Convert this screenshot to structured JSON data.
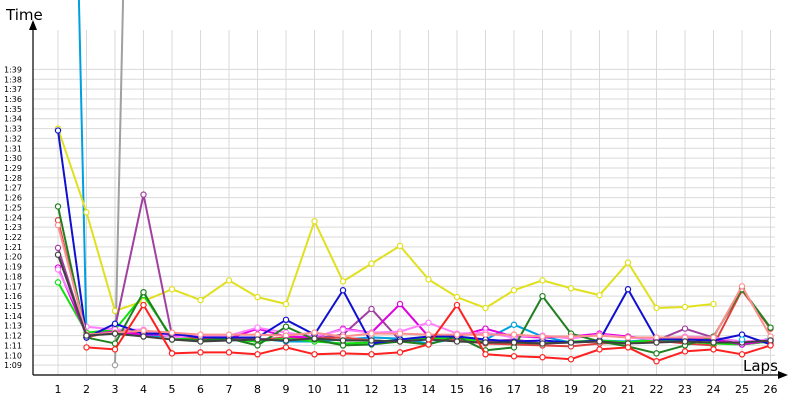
{
  "chart_data": {
    "type": "line",
    "title": "",
    "ylabel": "Time",
    "xlabel": "Laps",
    "x": [
      1,
      2,
      3,
      4,
      5,
      6,
      7,
      8,
      9,
      10,
      11,
      12,
      13,
      14,
      15,
      16,
      17,
      18,
      19,
      20,
      21,
      22,
      23,
      24,
      25,
      26
    ],
    "y_tick_labels": [
      "1:09",
      "1:10",
      "1:11",
      "1:12",
      "1:13",
      "1:14",
      "1:15",
      "1:16",
      "1:17",
      "1:18",
      "1:19",
      "1:20",
      "1:21",
      "1:22",
      "1:23",
      "1:24",
      "1:25",
      "1:26",
      "1:27",
      "1:28",
      "1:29",
      "1:30",
      "1:31",
      "1:32",
      "1:33",
      "1:34",
      "1:35",
      "1:36",
      "1:37",
      "1:38",
      "1:39"
    ],
    "ylim_seconds": [
      68,
      103
    ],
    "grid": true,
    "series": [
      {
        "color": "#00a0e0",
        "values": [
          200,
          72,
          72.5,
          72,
          71.9,
          71.8,
          71.5,
          71.7,
          71.4,
          71.4,
          71.6,
          71.8,
          71.7,
          71.2,
          71.7,
          71.6,
          73.1,
          71.9,
          71.3,
          71.5,
          71.4,
          71.6,
          71.6,
          71.7,
          71.1,
          71.7
        ]
      },
      {
        "color": "#a0a0a0",
        "values": [
          null,
          null,
          69,
          200,
          null,
          null,
          null,
          null,
          null,
          null,
          null,
          null,
          null,
          null,
          null,
          null,
          null,
          null,
          null,
          null,
          null,
          null,
          null,
          null,
          null,
          null
        ]
      },
      {
        "color": "#e0e020",
        "values": [
          93,
          84.5,
          74.5,
          75.5,
          76.7,
          75.6,
          77.6,
          75.9,
          75.2,
          83.6,
          77.5,
          79.3,
          81.1,
          77.7,
          75.9,
          74.8,
          76.6,
          77.6,
          76.8,
          76.1,
          79.4,
          74.8,
          74.9,
          75.2,
          null,
          null
        ]
      },
      {
        "color": "#a040a0",
        "values": [
          80.9,
          71.8,
          72.8,
          86.3,
          72,
          71.8,
          71.6,
          71.6,
          71.8,
          71.7,
          72.1,
          74.7,
          71.5,
          71.9,
          71.6,
          71.4,
          71.6,
          71.2,
          71.3,
          71.4,
          71.2,
          71.5,
          72.7,
          71.8,
          71.1,
          71.4
        ]
      },
      {
        "color": "#e04040",
        "values": [
          83.7,
          71.8,
          72.5,
          72.3,
          71.9,
          71.6,
          71.6,
          71.5,
          71.8,
          71.7,
          71.8,
          71.5,
          71.4,
          71.8,
          71.5,
          71.2,
          71.1,
          71,
          70.9,
          71.2,
          71.3,
          71.5,
          71.2,
          71,
          76.6,
          72.7
        ]
      },
      {
        "color": "#10e010",
        "values": [
          77.4,
          72.3,
          72.6,
          76.1,
          71.8,
          71.5,
          71.6,
          71.4,
          71.7,
          71.4,
          71.2,
          71.3,
          71.6,
          71.7,
          71.8,
          71.3,
          71.3,
          71.2,
          71.4,
          71.5,
          71.3,
          71.6,
          71.4,
          71.2,
          71.1,
          71.4
        ]
      },
      {
        "color": "#e000e0",
        "values": [
          78.9,
          72.1,
          72.4,
          72.1,
          72.1,
          71.9,
          71.7,
          72.7,
          71.9,
          71.8,
          72.7,
          72.3,
          75.2,
          71.9,
          71.9,
          72.7,
          71.9,
          71.8,
          71.9,
          72.2,
          71.9,
          71.6,
          71.8,
          71.6,
          71.1,
          71.5
        ]
      },
      {
        "color": "#ff80ff",
        "values": [
          78.7,
          72.9,
          72.6,
          72.6,
          71.8,
          72,
          72,
          72.8,
          72.3,
          71.9,
          72.6,
          72.3,
          72.4,
          73.3,
          72.2,
          72.3,
          71.8,
          72,
          71.7,
          72.1,
          71.8,
          71.6,
          71.9,
          71.8,
          71.4,
          71.6
        ]
      },
      {
        "color": "#208020",
        "values": [
          85.1,
          71.8,
          71.2,
          76.4,
          71.6,
          71.5,
          71.7,
          71,
          72.9,
          71.6,
          71,
          71.1,
          71.4,
          71.1,
          71.9,
          70.5,
          70.8,
          76,
          72.2,
          71.4,
          70.9,
          70.2,
          71,
          71.9,
          76.7,
          72.8
        ]
      },
      {
        "color": "#1010d0",
        "values": [
          92.8,
          71.8,
          73.2,
          72.2,
          72.2,
          71.8,
          71.8,
          71.8,
          73.6,
          72.1,
          76.6,
          71.2,
          71.6,
          71.9,
          71.9,
          71.6,
          71.4,
          71.5,
          71.3,
          71.5,
          76.7,
          71.6,
          71.6,
          71.5,
          72.1,
          71.1
        ]
      },
      {
        "color": "#ff9090",
        "values": [
          83.2,
          72.1,
          72.3,
          72.5,
          72.3,
          72.1,
          72.1,
          72.1,
          72,
          72.3,
          71.9,
          72.2,
          72.2,
          72.1,
          72.1,
          72.1,
          72.1,
          71.9,
          71.9,
          72,
          71.8,
          71.8,
          71.8,
          71.8,
          77,
          71.9
        ]
      },
      {
        "color": "#404040",
        "values": [
          80.2,
          72,
          72.2,
          71.9,
          71.6,
          71.4,
          71.5,
          71.6,
          71.5,
          71.7,
          71.5,
          71.5,
          71.4,
          71.6,
          71.4,
          71.3,
          71.3,
          71.2,
          71.3,
          71.4,
          71.2,
          71.3,
          71.4,
          71.3,
          71.3,
          71.5
        ]
      },
      {
        "color": "#ff2020",
        "values": [
          null,
          70.8,
          70.6,
          75.1,
          70.2,
          70.3,
          70.3,
          70.1,
          70.8,
          70.1,
          70.2,
          70.1,
          70.3,
          71.1,
          75.1,
          70.1,
          69.9,
          69.8,
          69.6,
          70.6,
          70.8,
          69.4,
          70.4,
          70.6,
          70.1,
          71
        ]
      },
      {
        "color": "#00c0ff",
        "values": [
          null,
          null,
          null,
          null,
          null,
          null,
          null,
          null,
          null,
          null,
          null,
          null,
          null,
          null,
          null,
          null,
          null,
          null,
          null,
          null,
          null,
          null,
          null,
          null,
          71.6,
          null
        ]
      }
    ]
  }
}
